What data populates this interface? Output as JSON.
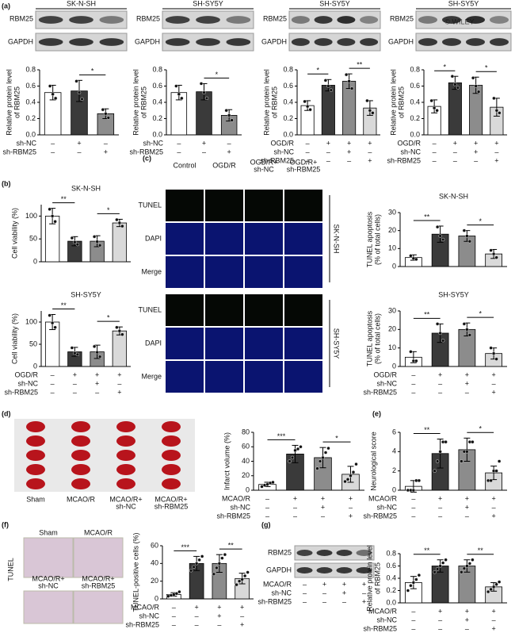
{
  "chart_data": [
    {
      "type": "bar",
      "ylabel": [
        "Relative protein level",
        "of RBM25"
      ],
      "ylim": [
        0,
        0.8
      ],
      "yticks": [
        {
          "value": 0,
          "label": "0.0"
        },
        0.2,
        0.4,
        0.6,
        0.8
      ],
      "colors": [
        "#ffffff",
        "#3a3a3a",
        "#8c8c8c"
      ],
      "values": [
        0.52,
        0.54,
        0.26
      ],
      "errors": [
        0.09,
        0.13,
        0.06
      ],
      "points": [
        [
          0.6,
          0.5,
          0.45
        ],
        [
          0.66,
          0.52,
          0.44
        ],
        [
          0.31,
          0.26,
          0.21
        ]
      ],
      "conditions": [
        {
          "name": "sh-NC",
          "marks": [
            "–",
            "+",
            "–"
          ]
        },
        {
          "name": "sh-RBM25",
          "marks": [
            "–",
            "–",
            "+"
          ]
        }
      ],
      "significance": [
        {
          "from": 1,
          "to": 2,
          "label": "*"
        }
      ]
    },
    {
      "type": "bar",
      "ylabel": [
        "Relative protein level",
        "of RBM25"
      ],
      "ylim": [
        0,
        0.8
      ],
      "yticks": [
        {
          "value": 0,
          "label": "0.0"
        },
        0.2,
        0.4,
        0.6,
        0.8
      ],
      "colors": [
        "#ffffff",
        "#3a3a3a",
        "#8c8c8c"
      ],
      "values": [
        0.52,
        0.53,
        0.24
      ],
      "errors": [
        0.09,
        0.1,
        0.07
      ],
      "points": [
        [
          0.6,
          0.5,
          0.45
        ],
        [
          0.63,
          0.52,
          0.45
        ],
        [
          0.3,
          0.24,
          0.18
        ]
      ],
      "conditions": [
        {
          "name": "sh-NC",
          "marks": [
            "–",
            "+",
            "–"
          ]
        },
        {
          "name": "sh-RBM25",
          "marks": [
            "–",
            "–",
            "+"
          ]
        }
      ],
      "significance": [
        {
          "from": 1,
          "to": 2,
          "label": "*"
        }
      ]
    },
    {
      "type": "bar",
      "ylabel": [
        "Relative protein level",
        "of RBM25"
      ],
      "ylim": [
        0,
        0.8
      ],
      "yticks": [
        {
          "value": 0,
          "label": "0.0"
        },
        0.2,
        0.4,
        0.6,
        0.8
      ],
      "colors": [
        "#ffffff",
        "#3a3a3a",
        "#8c8c8c",
        "#d9d9d9"
      ],
      "values": [
        0.36,
        0.61,
        0.66,
        0.33
      ],
      "errors": [
        0.06,
        0.07,
        0.09,
        0.09
      ],
      "points": [
        [
          0.41,
          0.35,
          0.31
        ],
        [
          0.67,
          0.6,
          0.55
        ],
        [
          0.74,
          0.66,
          0.57
        ],
        [
          0.42,
          0.3,
          0.27
        ]
      ],
      "conditions": [
        {
          "name": "OGD/R",
          "marks": [
            "–",
            "+",
            "+",
            "+"
          ]
        },
        {
          "name": "sh-NC",
          "marks": [
            "–",
            "–",
            "+",
            "–"
          ]
        },
        {
          "name": "sh-RBM25",
          "marks": [
            "–",
            "–",
            "–",
            "+"
          ]
        }
      ],
      "significance": [
        {
          "from": 0,
          "to": 1,
          "label": "*"
        },
        {
          "from": 2,
          "to": 3,
          "label": "**"
        }
      ]
    },
    {
      "type": "bar",
      "ylabel": [
        "Relative protein level",
        "of RBM25"
      ],
      "ylim": [
        0,
        0.8
      ],
      "yticks": [
        {
          "value": 0,
          "label": "0.0"
        },
        0.2,
        0.4,
        0.6,
        0.8
      ],
      "colors": [
        "#ffffff",
        "#3a3a3a",
        "#8c8c8c",
        "#d9d9d9"
      ],
      "values": [
        0.35,
        0.64,
        0.61,
        0.34
      ],
      "errors": [
        0.08,
        0.08,
        0.1,
        0.11
      ],
      "points": [
        [
          0.42,
          0.33,
          0.3
        ],
        [
          0.72,
          0.62,
          0.58
        ],
        [
          0.7,
          0.6,
          0.53
        ],
        [
          0.45,
          0.3,
          0.27
        ]
      ],
      "conditions": [
        {
          "name": "OGD/R",
          "marks": [
            "–",
            "+",
            "+",
            "+"
          ]
        },
        {
          "name": "sh-NC",
          "marks": [
            "–",
            "–",
            "+",
            "–"
          ]
        },
        {
          "name": "sh-RBM25",
          "marks": [
            "–",
            "–",
            "–",
            "+"
          ]
        }
      ],
      "significance": [
        {
          "from": 0,
          "to": 1,
          "label": "*"
        },
        {
          "from": 2,
          "to": 3,
          "label": "*"
        }
      ]
    },
    {
      "type": "bar",
      "title": "SK-N-SH",
      "ylabel": [
        "Cell viability (%)"
      ],
      "ylim": [
        0,
        125
      ],
      "yticks": [
        0,
        50,
        100
      ],
      "colors": [
        "#ffffff",
        "#3a3a3a",
        "#8c8c8c",
        "#d9d9d9"
      ],
      "values": [
        100,
        45,
        45,
        85
      ],
      "errors": [
        17,
        10,
        12,
        8
      ],
      "points": [
        [
          115,
          100,
          88
        ],
        [
          52,
          43,
          38
        ],
        [
          55,
          44,
          36
        ],
        [
          92,
          85,
          78
        ]
      ],
      "significance": [
        {
          "from": 0,
          "to": 1,
          "label": "**"
        },
        {
          "from": 2,
          "to": 3,
          "label": "*"
        }
      ]
    },
    {
      "type": "bar",
      "title": "SH-SY5Y",
      "ylabel": [
        "Cell viability (%)"
      ],
      "ylim": [
        0,
        125
      ],
      "yticks": [
        0,
        50,
        100
      ],
      "colors": [
        "#ffffff",
        "#3a3a3a",
        "#8c8c8c",
        "#d9d9d9"
      ],
      "values": [
        100,
        33,
        33,
        80
      ],
      "errors": [
        17,
        10,
        15,
        9
      ],
      "points": [
        [
          115,
          98,
          88
        ],
        [
          42,
          30,
          27
        ],
        [
          45,
          32,
          22
        ],
        [
          88,
          80,
          72
        ]
      ],
      "conditions": [
        {
          "name": "OGD/R",
          "marks": [
            "–",
            "+",
            "+",
            "+"
          ]
        },
        {
          "name": "sh-NC",
          "marks": [
            "–",
            "–",
            "+",
            "–"
          ]
        },
        {
          "name": "sh-RBM25",
          "marks": [
            "–",
            "–",
            "–",
            "+"
          ]
        }
      ],
      "significance": [
        {
          "from": 0,
          "to": 1,
          "label": "**"
        },
        {
          "from": 2,
          "to": 3,
          "label": "*"
        }
      ]
    },
    {
      "type": "bar",
      "title": "SK-N-SH",
      "ylabel": [
        "TUNEL apoptosis",
        "(% of total cells)"
      ],
      "ylim": [
        0,
        30
      ],
      "yticks": [
        0,
        10,
        20,
        30
      ],
      "colors": [
        "#ffffff",
        "#3a3a3a",
        "#8c8c8c",
        "#d9d9d9"
      ],
      "values": [
        5,
        18,
        17,
        7
      ],
      "errors": [
        1.5,
        4.5,
        3,
        2.5
      ],
      "points": [
        [
          6,
          4.5,
          4
        ],
        [
          22,
          17,
          15
        ],
        [
          20,
          17,
          14
        ],
        [
          9,
          7,
          5
        ]
      ],
      "significance": [
        {
          "from": 0,
          "to": 1,
          "label": "**"
        },
        {
          "from": 2,
          "to": 3,
          "label": "*"
        }
      ]
    },
    {
      "type": "bar",
      "title": "SH-SY5Y",
      "ylabel": [
        "TUNEL apoptosis",
        "(% of total cells)"
      ],
      "ylim": [
        0,
        30
      ],
      "yticks": [
        0,
        10,
        20,
        30
      ],
      "colors": [
        "#ffffff",
        "#3a3a3a",
        "#8c8c8c",
        "#d9d9d9"
      ],
      "values": [
        5,
        18,
        20,
        7
      ],
      "errors": [
        3,
        5,
        3.5,
        3
      ],
      "points": [
        [
          8,
          3,
          3
        ],
        [
          23,
          18,
          14
        ],
        [
          23,
          20,
          17
        ],
        [
          10,
          7,
          4
        ]
      ],
      "conditions": [
        {
          "name": "OGD/R",
          "marks": [
            "–",
            "+",
            "+",
            "+"
          ]
        },
        {
          "name": "sh-NC",
          "marks": [
            "–",
            "–",
            "+",
            "–"
          ]
        },
        {
          "name": "sh-RBM25",
          "marks": [
            "–",
            "–",
            "–",
            "+"
          ]
        }
      ],
      "significance": [
        {
          "from": 0,
          "to": 1,
          "label": "**"
        },
        {
          "from": 2,
          "to": 3,
          "label": "*"
        }
      ]
    },
    {
      "type": "bar",
      "ylabel": [
        "Infarct volume (%)"
      ],
      "ylim": [
        0,
        80
      ],
      "yticks": [
        0,
        20,
        40,
        60,
        80
      ],
      "colors": [
        "#ffffff",
        "#3a3a3a",
        "#8c8c8c",
        "#d9d9d9"
      ],
      "values": [
        8,
        50,
        45,
        22
      ],
      "errors": [
        3,
        12,
        14,
        11
      ],
      "points": [
        [
          5,
          7,
          8,
          10,
          11
        ],
        [
          40,
          45,
          55,
          57,
          60
        ],
        [
          30,
          40,
          45,
          52,
          58
        ],
        [
          12,
          15,
          20,
          25,
          36
        ]
      ],
      "conditions": [
        {
          "name": "MCAO/R",
          "marks": [
            "–",
            "+",
            "+",
            "+"
          ]
        },
        {
          "name": "sh-NC",
          "marks": [
            "–",
            "–",
            "+",
            "–"
          ]
        },
        {
          "name": "sh-RBM25",
          "marks": [
            "–",
            "–",
            "–",
            "+"
          ]
        }
      ],
      "significance": [
        {
          "from": 0,
          "to": 1,
          "label": "***"
        },
        {
          "from": 2,
          "to": 3,
          "label": "*"
        }
      ]
    },
    {
      "type": "bar",
      "ylabel": [
        "Neurological score"
      ],
      "ylim": [
        0,
        6
      ],
      "yticks": [
        0,
        2,
        4,
        6
      ],
      "colors": [
        "#ffffff",
        "#3a3a3a",
        "#8c8c8c",
        "#d9d9d9"
      ],
      "values": [
        0.4,
        3.8,
        4.2,
        1.8
      ],
      "errors": [
        0.6,
        1.5,
        1.2,
        0.7
      ],
      "points": [
        [
          0,
          0,
          0,
          1,
          1
        ],
        [
          2,
          3,
          4,
          5,
          5
        ],
        [
          3,
          4,
          4,
          5,
          5
        ],
        [
          1,
          1,
          2,
          2,
          3
        ]
      ],
      "conditions": [
        {
          "name": "MCAO/R",
          "marks": [
            "–",
            "+",
            "+",
            "+"
          ]
        },
        {
          "name": "sh-NC",
          "marks": [
            "–",
            "–",
            "+",
            "–"
          ]
        },
        {
          "name": "sh-RBM25",
          "marks": [
            "–",
            "–",
            "–",
            "+"
          ]
        }
      ],
      "significance": [
        {
          "from": 0,
          "to": 1,
          "label": "**"
        },
        {
          "from": 2,
          "to": 3,
          "label": "*"
        }
      ]
    },
    {
      "type": "bar",
      "ylabel": [
        "TUNEL-positive cells (%)"
      ],
      "ylim": [
        0,
        60
      ],
      "yticks": [
        0,
        20,
        40,
        60
      ],
      "colors": [
        "#ffffff",
        "#3a3a3a",
        "#8c8c8c",
        "#d9d9d9"
      ],
      "values": [
        5,
        40,
        40,
        23
      ],
      "errors": [
        2,
        8,
        10,
        6
      ],
      "points": [
        [
          3,
          4,
          5,
          6,
          8
        ],
        [
          32,
          36,
          40,
          44,
          48
        ],
        [
          28,
          35,
          40,
          46,
          50
        ],
        [
          16,
          20,
          22,
          26,
          30
        ]
      ],
      "conditions": [
        {
          "name": "MCAO/R",
          "marks": [
            "–",
            "+",
            "+",
            "+"
          ]
        },
        {
          "name": "sh-NC",
          "marks": [
            "–",
            "–",
            "+",
            "–"
          ]
        },
        {
          "name": "sh-RBM25",
          "marks": [
            "–",
            "–",
            "–",
            "+"
          ]
        }
      ],
      "significance": [
        {
          "from": 0,
          "to": 1,
          "label": "***"
        },
        {
          "from": 2,
          "to": 3,
          "label": "**"
        }
      ]
    },
    {
      "type": "bar",
      "ylabel": [
        "Relative protein level",
        "of RBM25"
      ],
      "ylim": [
        0,
        0.8
      ],
      "yticks": [
        {
          "value": 0,
          "label": "0.0"
        },
        0.2,
        0.4,
        0.6,
        0.8
      ],
      "colors": [
        "#ffffff",
        "#3a3a3a",
        "#8c8c8c",
        "#d9d9d9"
      ],
      "values": [
        0.33,
        0.6,
        0.6,
        0.26
      ],
      "errors": [
        0.1,
        0.1,
        0.1,
        0.07
      ],
      "points": [
        [
          0.2,
          0.28,
          0.33,
          0.38,
          0.45
        ],
        [
          0.5,
          0.55,
          0.6,
          0.65,
          0.7
        ],
        [
          0.5,
          0.56,
          0.6,
          0.64,
          0.7
        ],
        [
          0.18,
          0.22,
          0.26,
          0.3,
          0.34
        ]
      ],
      "conditions": [
        {
          "name": "MCAO/R",
          "marks": [
            "–",
            "+",
            "+",
            "+"
          ]
        },
        {
          "name": "sh-NC",
          "marks": [
            "–",
            "–",
            "+",
            "–"
          ]
        },
        {
          "name": "sh-RBM25",
          "marks": [
            "–",
            "–",
            "–",
            "+"
          ]
        }
      ],
      "significance": [
        {
          "from": 0,
          "to": 1,
          "label": "**"
        },
        {
          "from": 2,
          "to": 3,
          "label": "**"
        }
      ]
    }
  ],
  "figure": {
    "panel_labels": [
      "(a)",
      "(b)",
      "(c)",
      "(d)",
      "(e)",
      "(f)",
      "(g)"
    ],
    "blots_a": [
      {
        "title": "SK-N-SH",
        "rows": [
          "RBM25",
          "GAPDH"
        ]
      },
      {
        "title": "SH-SY5Y",
        "rows": [
          "RBM25",
          "GAPDH"
        ]
      },
      {
        "title": "SH-SY5Y",
        "rows": [
          "RBM25",
          "GAPDH"
        ]
      },
      {
        "title": "SH-SY5Y",
        "rows": [
          "RBM25",
          "GAPDH"
        ]
      }
    ],
    "watermark": "© WILEY",
    "tunel_columns": [
      [
        "Control"
      ],
      [
        "OGD/R"
      ],
      [
        "OGD/R+",
        "sh-NC"
      ],
      [
        "OGD/R+",
        "sh-RBM25"
      ]
    ],
    "tunel_rows": [
      "TUNEL",
      "DAPI",
      "Merge",
      "TUNEL",
      "DAPI",
      "Merge"
    ],
    "tunel_cells": [
      "SK-N-SH",
      "SH-SY5Y"
    ],
    "brain_labels": [
      [
        "Sham"
      ],
      [
        "MCAO/R"
      ],
      [
        "MCAO/R+",
        "sh-NC"
      ],
      [
        "MCAO/R+",
        "sh-RBM25"
      ]
    ],
    "f_images": {
      "row_label": "TUNEL",
      "labels": [
        [
          "Sham"
        ],
        [
          "MCAO/R"
        ],
        [
          "MCAO/R+",
          "sh-NC"
        ],
        [
          "MCAO/R+",
          "sh-RBM25"
        ]
      ]
    },
    "g_blot": {
      "rows": [
        "RBM25",
        "GAPDH"
      ],
      "conditions": [
        {
          "name": "MCAO/R",
          "marks": [
            "–",
            "+",
            "+",
            "+"
          ]
        },
        {
          "name": "sh-NC",
          "marks": [
            "–",
            "–",
            "+",
            "–"
          ]
        },
        {
          "name": "sh-RBM25",
          "marks": [
            "–",
            "–",
            "–",
            "+"
          ]
        }
      ]
    }
  }
}
